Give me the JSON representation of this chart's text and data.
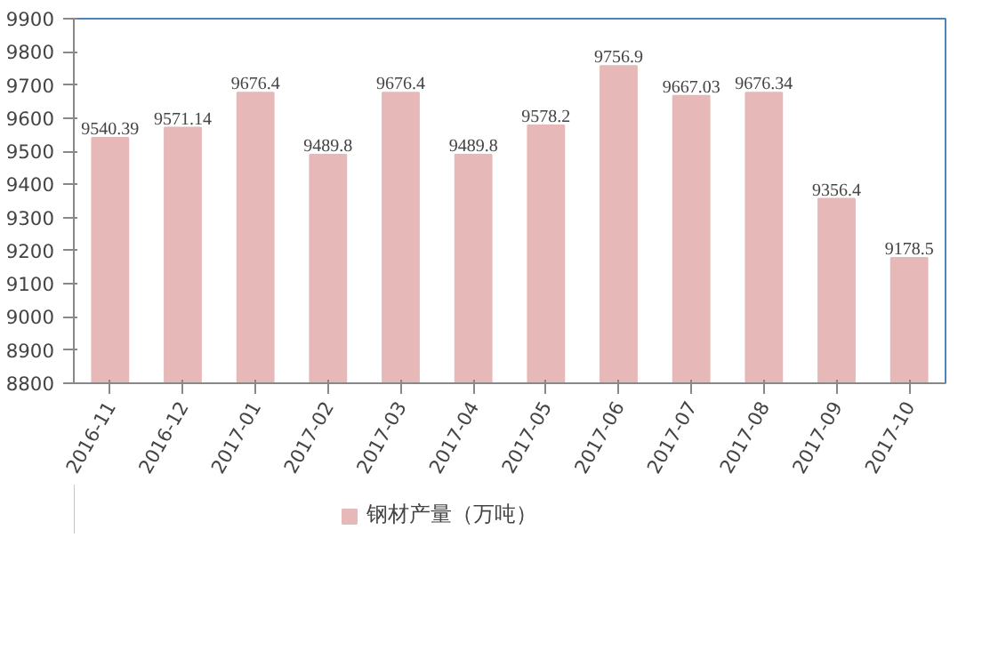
{
  "chart_data": {
    "type": "bar",
    "categories": [
      "2016-11",
      "2016-12",
      "2017-01",
      "2017-02",
      "2017-03",
      "2017-04",
      "2017-05",
      "2017-06",
      "2017-07",
      "2017-08",
      "2017-09",
      "2017-10"
    ],
    "series": [
      {
        "name": "钢材产量（万吨）",
        "color": "#e6b8b7",
        "values": [
          9540.39,
          9571.14,
          9676.4,
          9489.8,
          9676.4,
          9489.8,
          9578.2,
          9756.9,
          9667.03,
          9676.34,
          9356.4,
          9178.5
        ]
      }
    ],
    "ylim": [
      8800,
      9900
    ],
    "yticks": [
      8800,
      8900,
      9000,
      9100,
      9200,
      9300,
      9400,
      9500,
      9600,
      9700,
      9800,
      9900
    ],
    "data_labels": true,
    "legend": "bottom",
    "grid": false
  }
}
